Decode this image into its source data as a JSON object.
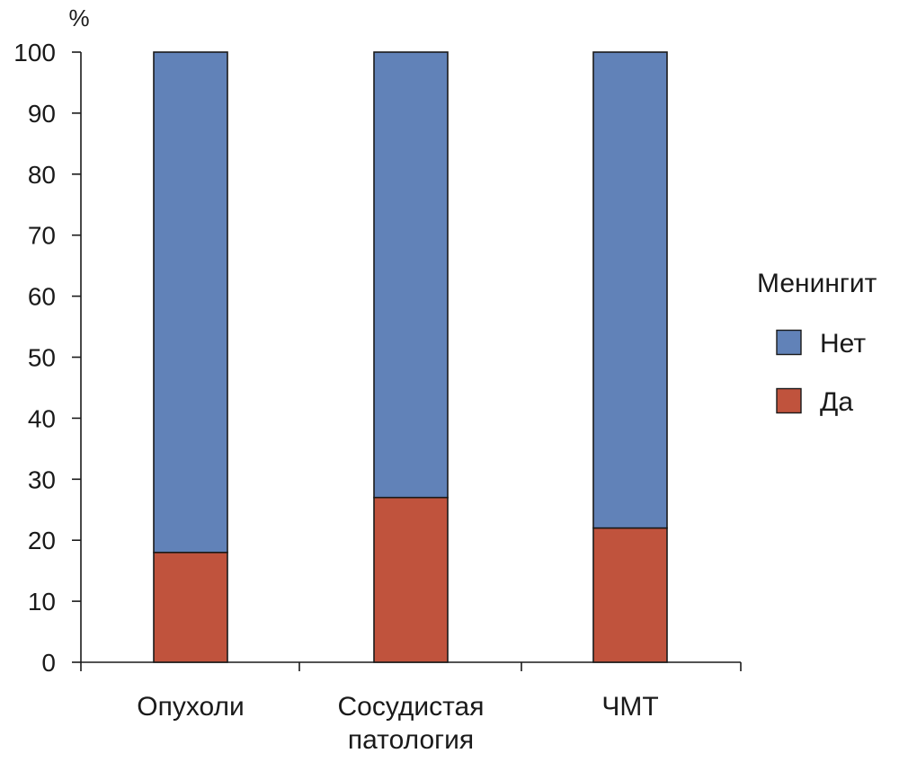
{
  "chart_data": {
    "type": "bar",
    "stacked": true,
    "categories": [
      "Опухоли",
      "Сосудистая патология",
      "ЧМТ"
    ],
    "category_lines": [
      [
        "Опухоли"
      ],
      [
        "Сосудистая",
        "патология"
      ],
      [
        "ЧМТ"
      ]
    ],
    "series": [
      {
        "name": "Да",
        "values": [
          18,
          27,
          22
        ],
        "color": "#c0533d"
      },
      {
        "name": "Нет",
        "values": [
          82,
          73,
          78
        ],
        "color": "#6182b8"
      }
    ],
    "ylabel": "%",
    "ylim": [
      0,
      100
    ],
    "yticks": [
      0,
      10,
      20,
      30,
      40,
      50,
      60,
      70,
      80,
      90,
      100
    ],
    "legend": {
      "title": "Менингит",
      "order": [
        "Нет",
        "Да"
      ],
      "placement": "right"
    },
    "grid": false
  }
}
